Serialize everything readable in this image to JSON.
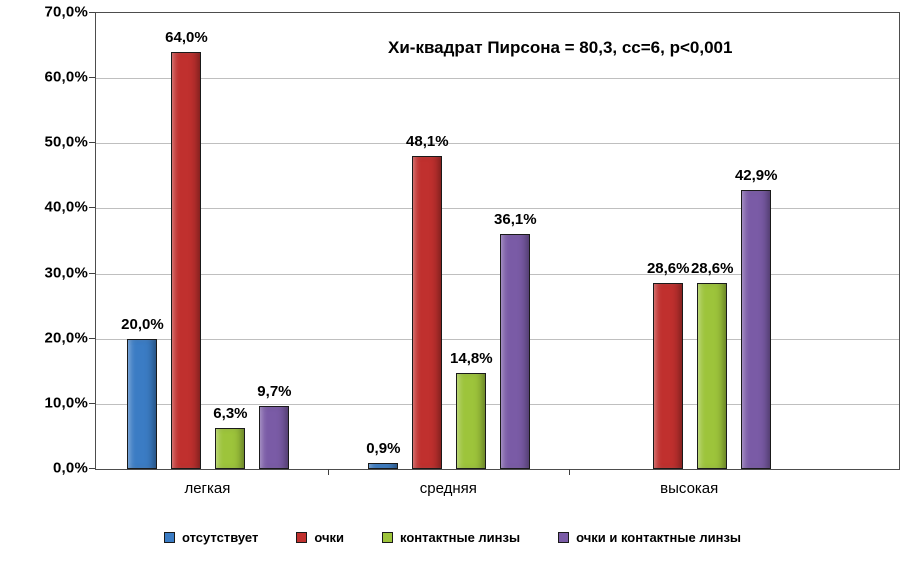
{
  "chart_data": {
    "type": "bar",
    "annotation": "Хи-квадрат Пирсона = 80,3, сс=6, p<0,001",
    "categories": [
      "легкая",
      "средняя",
      "высокая"
    ],
    "series": [
      {
        "name": "отсутствует",
        "color": "#3b7cc4",
        "values": [
          20.0,
          0.9,
          0
        ],
        "labels": [
          "20,0%",
          "0,9%",
          ""
        ]
      },
      {
        "name": "очки",
        "color": "#c0302e",
        "values": [
          64.0,
          48.1,
          28.6
        ],
        "labels": [
          "64,0%",
          "48,1%",
          "28,6%"
        ]
      },
      {
        "name": "контактные линзы",
        "color": "#9dc43b",
        "values": [
          6.3,
          14.8,
          28.6
        ],
        "labels": [
          "6,3%",
          "14,8%",
          "28,6%"
        ]
      },
      {
        "name": "очки и контактные линзы",
        "color": "#7a5ba6",
        "values": [
          9.7,
          36.1,
          42.9
        ],
        "labels": [
          "9,7%",
          "36,1%",
          "42,9%"
        ]
      }
    ],
    "ylim": [
      0,
      70
    ],
    "ytick_step": 10,
    "ytick_labels": [
      "0,0%",
      "10,0%",
      "20,0%",
      "30,0%",
      "40,0%",
      "50,0%",
      "60,0%",
      "70,0%"
    ],
    "grid": true,
    "legend_position": "bottom"
  }
}
